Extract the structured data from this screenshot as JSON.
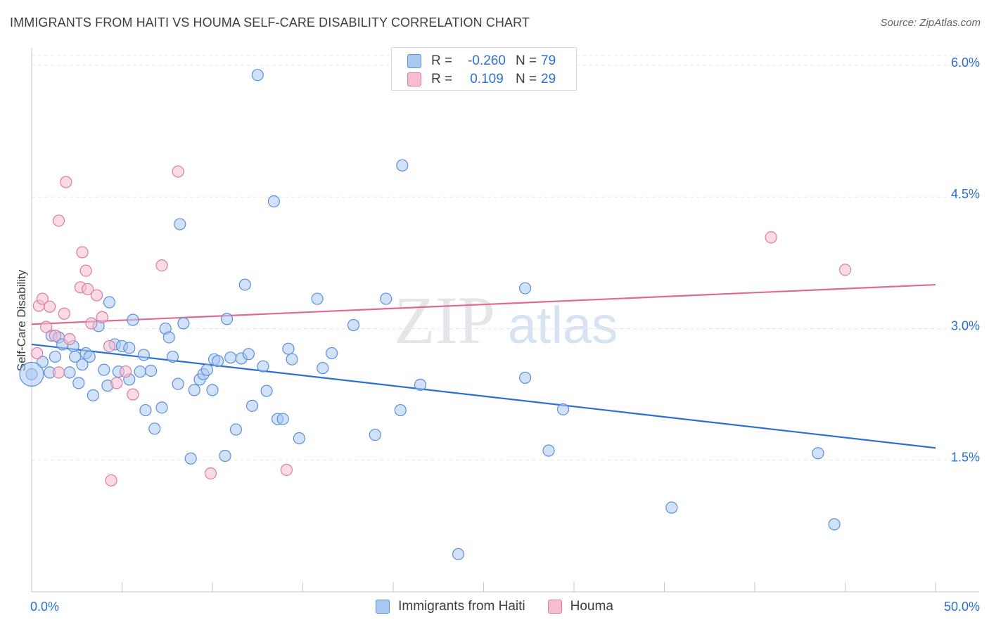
{
  "title": "IMMIGRANTS FROM HAITI VS HOUMA SELF-CARE DISABILITY CORRELATION CHART",
  "source": "Source: ZipAtlas.com",
  "watermark": {
    "zip": "ZIP",
    "atlas": "atlas"
  },
  "colors": {
    "haiti_fill": "#a9c9f3",
    "haiti_stroke": "#5b8fd8",
    "haiti_line": "#2a6fd4",
    "houma_fill": "#f6bdd0",
    "houma_stroke": "#e07aa0",
    "houma_line": "#e06a94",
    "tick_label": "#2a6fd4",
    "grid": "#e3e5e8"
  },
  "stats": [
    {
      "r_label": "R =",
      "r_value": "-0.260",
      "n_label": "N =",
      "n_value": "79",
      "series": "haiti"
    },
    {
      "r_label": "R =",
      "r_value": "0.109",
      "n_label": "N =",
      "n_value": "29",
      "series": "houma"
    }
  ],
  "chart_data": {
    "type": "scatter",
    "title": "IMMIGRANTS FROM HAITI VS HOUMA SELF-CARE DISABILITY CORRELATION CHART",
    "xlabel": "",
    "ylabel": "Self-Care Disability",
    "xlim": [
      0,
      50
    ],
    "ylim": [
      0,
      6.2
    ],
    "x_tick_labels": [
      "0.0%",
      "50.0%"
    ],
    "y_ticks": [
      1.5,
      3.0,
      4.5,
      6.0
    ],
    "y_tick_labels": [
      "1.5%",
      "3.0%",
      "4.5%",
      "6.0%"
    ],
    "legend_position": "bottom-center",
    "series": [
      {
        "name": "Immigrants from Haiti",
        "key": "haiti",
        "trend": {
          "x": [
            0,
            50
          ],
          "y": [
            2.82,
            1.64
          ]
        },
        "points": [
          [
            0.0,
            2.48
          ],
          [
            0.6,
            2.62
          ],
          [
            1.0,
            2.5
          ],
          [
            1.1,
            2.92
          ],
          [
            1.3,
            2.68
          ],
          [
            1.5,
            2.9
          ],
          [
            1.7,
            2.82
          ],
          [
            2.1,
            2.5
          ],
          [
            2.3,
            2.8
          ],
          [
            2.4,
            2.68
          ],
          [
            2.6,
            2.38
          ],
          [
            2.8,
            2.59
          ],
          [
            3.0,
            2.72
          ],
          [
            3.2,
            2.68
          ],
          [
            3.4,
            2.24
          ],
          [
            3.7,
            3.03
          ],
          [
            4.0,
            2.53
          ],
          [
            4.2,
            2.35
          ],
          [
            4.3,
            3.3
          ],
          [
            4.6,
            2.82
          ],
          [
            4.8,
            2.51
          ],
          [
            5.0,
            2.8
          ],
          [
            5.4,
            2.78
          ],
          [
            5.4,
            2.42
          ],
          [
            5.6,
            3.1
          ],
          [
            6.0,
            2.51
          ],
          [
            6.2,
            2.7
          ],
          [
            6.3,
            2.07
          ],
          [
            6.6,
            2.52
          ],
          [
            6.8,
            1.86
          ],
          [
            7.2,
            2.1
          ],
          [
            7.4,
            3.0
          ],
          [
            7.6,
            2.9
          ],
          [
            7.8,
            2.68
          ],
          [
            8.1,
            2.37
          ],
          [
            8.2,
            4.19
          ],
          [
            8.4,
            3.06
          ],
          [
            8.8,
            1.52
          ],
          [
            9.0,
            2.3
          ],
          [
            9.3,
            2.42
          ],
          [
            9.5,
            2.48
          ],
          [
            9.7,
            2.53
          ],
          [
            10.0,
            2.3
          ],
          [
            10.1,
            2.65
          ],
          [
            10.3,
            2.63
          ],
          [
            10.7,
            1.55
          ],
          [
            10.8,
            3.11
          ],
          [
            11.0,
            2.67
          ],
          [
            11.3,
            1.85
          ],
          [
            11.6,
            2.66
          ],
          [
            11.8,
            3.5
          ],
          [
            12.0,
            2.71
          ],
          [
            12.2,
            2.12
          ],
          [
            12.5,
            5.89
          ],
          [
            12.8,
            2.57
          ],
          [
            13.0,
            2.29
          ],
          [
            13.4,
            4.45
          ],
          [
            13.6,
            1.97
          ],
          [
            13.9,
            1.97
          ],
          [
            14.2,
            2.77
          ],
          [
            14.4,
            2.65
          ],
          [
            14.8,
            1.75
          ],
          [
            15.8,
            3.34
          ],
          [
            16.1,
            2.55
          ],
          [
            16.6,
            2.72
          ],
          [
            17.8,
            3.04
          ],
          [
            19.0,
            1.79
          ],
          [
            19.6,
            3.34
          ],
          [
            20.4,
            2.07
          ],
          [
            20.5,
            4.86
          ],
          [
            21.5,
            2.36
          ],
          [
            23.6,
            0.43
          ],
          [
            27.3,
            2.44
          ],
          [
            27.3,
            3.46
          ],
          [
            28.6,
            1.61
          ],
          [
            29.4,
            2.08
          ],
          [
            35.4,
            0.96
          ],
          [
            44.4,
            0.77
          ],
          [
            43.5,
            1.58
          ]
        ]
      },
      {
        "name": "Houma",
        "key": "houma",
        "trend": {
          "x": [
            0,
            50
          ],
          "y": [
            3.05,
            3.5
          ]
        },
        "points": [
          [
            0.3,
            2.72
          ],
          [
            0.4,
            3.26
          ],
          [
            0.6,
            3.34
          ],
          [
            0.8,
            3.02
          ],
          [
            1.0,
            3.25
          ],
          [
            1.3,
            2.92
          ],
          [
            1.5,
            4.23
          ],
          [
            1.5,
            2.5
          ],
          [
            1.8,
            3.17
          ],
          [
            1.9,
            4.67
          ],
          [
            2.1,
            2.88
          ],
          [
            2.7,
            3.47
          ],
          [
            2.8,
            3.87
          ],
          [
            3.0,
            3.66
          ],
          [
            3.1,
            3.45
          ],
          [
            3.3,
            3.06
          ],
          [
            3.6,
            3.38
          ],
          [
            3.9,
            3.13
          ],
          [
            4.3,
            2.8
          ],
          [
            4.4,
            1.27
          ],
          [
            4.7,
            2.38
          ],
          [
            5.2,
            2.51
          ],
          [
            5.6,
            2.25
          ],
          [
            7.2,
            3.72
          ],
          [
            8.1,
            4.79
          ],
          [
            9.9,
            1.35
          ],
          [
            14.1,
            1.39
          ],
          [
            40.9,
            4.04
          ],
          [
            45.0,
            3.67
          ]
        ]
      }
    ]
  }
}
